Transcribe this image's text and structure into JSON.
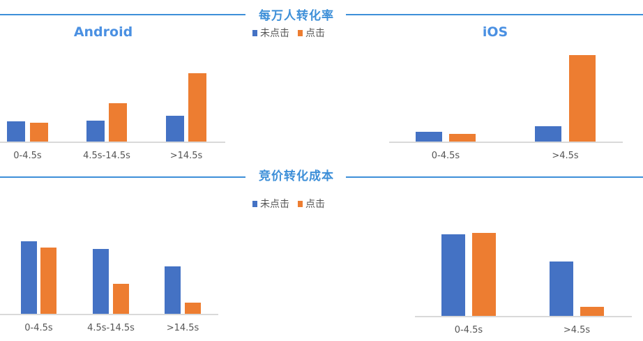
{
  "sections": [
    {
      "title": "每万人转化率"
    },
    {
      "title": "竞价转化成本"
    }
  ],
  "legend": {
    "series": [
      "未点击",
      "点击"
    ]
  },
  "colors": {
    "series": [
      "#4472c4",
      "#ed7d31"
    ],
    "accent": "#3d8fd8"
  },
  "chart_data": [
    {
      "type": "bar",
      "title": "Android",
      "section": "每万人转化率",
      "categories": [
        "0-4.5s",
        "4.5s-14.5s",
        ">14.5s"
      ],
      "series": [
        {
          "name": "未点击",
          "values": [
            29,
            30,
            37
          ]
        },
        {
          "name": "点击",
          "values": [
            27,
            55,
            98
          ]
        }
      ],
      "grid": false,
      "legend": "top-center"
    },
    {
      "type": "bar",
      "title": "iOS",
      "section": "每万人转化率",
      "categories": [
        "0-4.5s",
        ">4.5s"
      ],
      "series": [
        {
          "name": "未点击",
          "values": [
            14,
            22
          ]
        },
        {
          "name": "点击",
          "values": [
            11,
            124
          ]
        }
      ],
      "grid": false
    },
    {
      "type": "bar",
      "title": "",
      "section": "竞价转化成本",
      "categories": [
        "0-4.5s",
        "4.5s-14.5s",
        ">14.5s"
      ],
      "series": [
        {
          "name": "未点击",
          "values": [
            104,
            93,
            68
          ]
        },
        {
          "name": "点击",
          "values": [
            95,
            43,
            16
          ]
        }
      ],
      "grid": false,
      "legend": "top-center"
    },
    {
      "type": "bar",
      "title": "",
      "section": "竞价转化成本",
      "categories": [
        "0-4.5s",
        ">4.5s"
      ],
      "series": [
        {
          "name": "未点击",
          "values": [
            117,
            78
          ]
        },
        {
          "name": "点击",
          "values": [
            119,
            13
          ]
        }
      ],
      "grid": false
    }
  ]
}
